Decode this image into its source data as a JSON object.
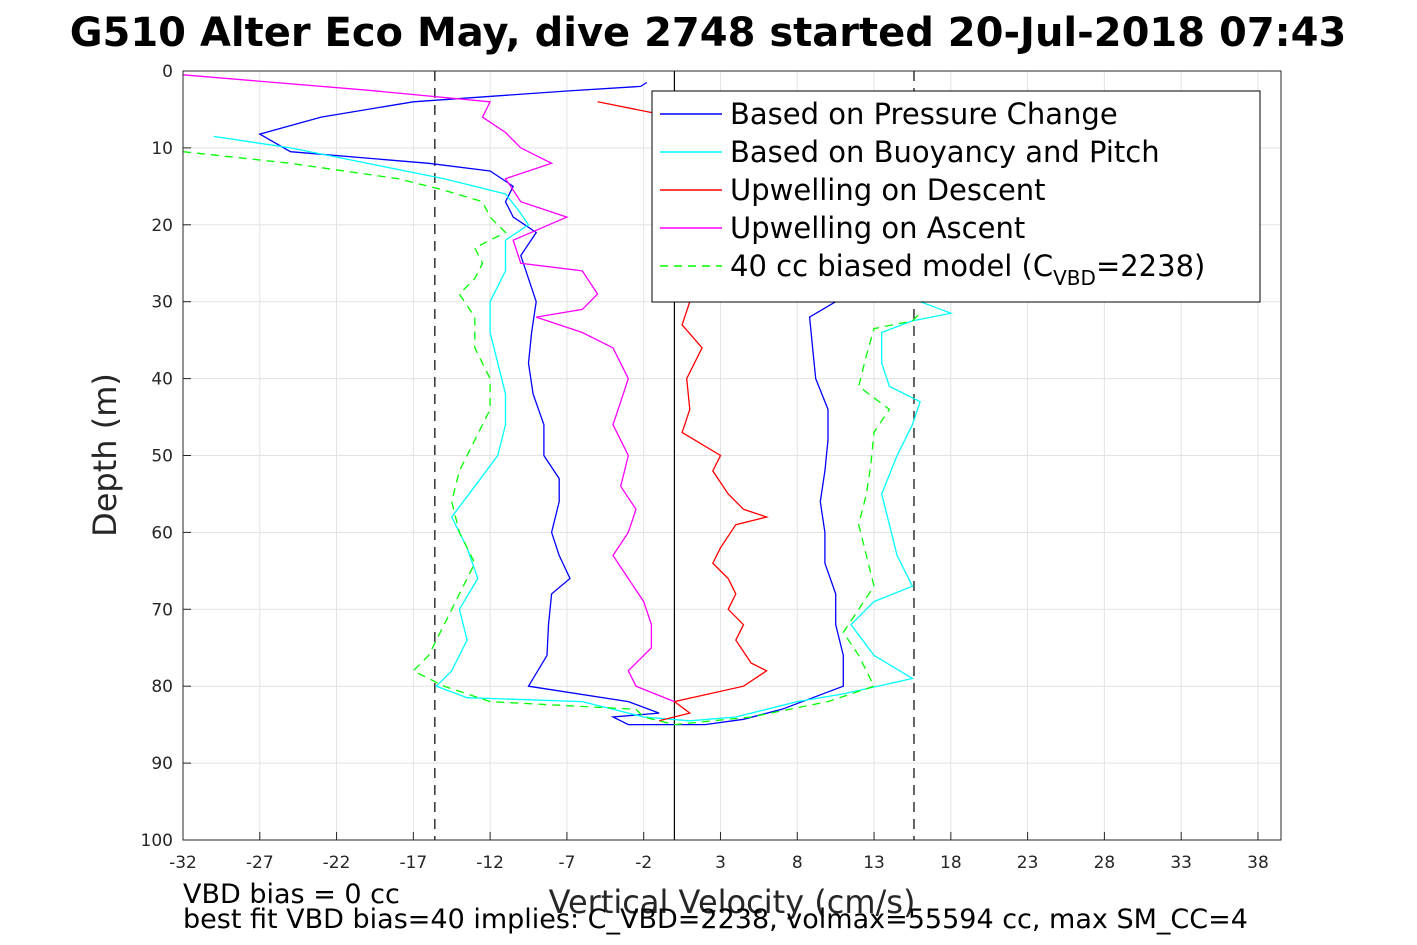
{
  "chart_data": {
    "type": "line",
    "title": "G510 Alter Eco May, dive 2748 started 20-Jul-2018 07:43",
    "xlabel": "Vertical Velocity (cm/s)",
    "ylabel": "Depth (m)",
    "xlim": [
      -32,
      39.5
    ],
    "ylim": [
      0,
      100
    ],
    "y_reversed": true,
    "grid": true,
    "legend_position": "top-right",
    "x_ticks": [
      -32,
      -27,
      -22,
      -17,
      -12,
      -7,
      -2,
      3,
      8,
      13,
      18,
      23,
      28,
      33,
      38
    ],
    "y_ticks": [
      0,
      10,
      20,
      30,
      40,
      50,
      60,
      70,
      80,
      90,
      100
    ],
    "reference_lines": [
      {
        "x": 0,
        "style": "solid",
        "color": "#000000"
      },
      {
        "x": -15.6,
        "style": "dashed",
        "color": "#000000"
      },
      {
        "x": 15.6,
        "style": "dashed",
        "color": "#000000"
      }
    ],
    "series": [
      {
        "name": "Based on Pressure Change",
        "color": "#0000ff",
        "dash": "",
        "points": [
          [
            -1.8,
            1.5
          ],
          [
            -2.2,
            2
          ],
          [
            -7,
            2.6
          ],
          [
            -17,
            4
          ],
          [
            -23,
            6
          ],
          [
            -27,
            8.2
          ],
          [
            -25,
            10.5
          ],
          [
            -16,
            12
          ],
          [
            -12,
            13
          ],
          [
            -10.5,
            15
          ],
          [
            -11,
            17
          ],
          [
            -10.5,
            19
          ],
          [
            -9,
            21
          ],
          [
            -10,
            24
          ],
          [
            -9.5,
            27
          ],
          [
            -9,
            30
          ],
          [
            -9.3,
            34
          ],
          [
            -9.5,
            38
          ],
          [
            -9.2,
            42
          ],
          [
            -8.5,
            46
          ],
          [
            -8.5,
            50
          ],
          [
            -7.5,
            53
          ],
          [
            -7.5,
            56
          ],
          [
            -8,
            60
          ],
          [
            -7.5,
            63
          ],
          [
            -6.8,
            66
          ],
          [
            -8,
            68
          ],
          [
            -8.2,
            72
          ],
          [
            -8.3,
            76
          ],
          [
            -9.5,
            80
          ],
          [
            -3,
            82
          ],
          [
            -1,
            83.5
          ],
          [
            -4,
            84
          ],
          [
            -3,
            85
          ],
          [
            2,
            85
          ],
          [
            4.5,
            84.3
          ],
          [
            7,
            83
          ],
          [
            11,
            80
          ],
          [
            11,
            76
          ],
          [
            10.5,
            72
          ],
          [
            10.5,
            68
          ],
          [
            9.8,
            64
          ],
          [
            9.8,
            60
          ],
          [
            9.5,
            56
          ],
          [
            9.8,
            52
          ],
          [
            10,
            48
          ],
          [
            10,
            44
          ],
          [
            9.2,
            40
          ],
          [
            9,
            36
          ],
          [
            8.8,
            32
          ],
          [
            10.5,
            30
          ]
        ]
      },
      {
        "name": "Based on Buoyancy and Pitch",
        "color": "#00ffff",
        "dash": "",
        "points": [
          [
            -30,
            8.5
          ],
          [
            -25,
            10
          ],
          [
            -20,
            12
          ],
          [
            -15,
            14
          ],
          [
            -11,
            16
          ],
          [
            -10.2,
            18
          ],
          [
            -9.5,
            20
          ],
          [
            -11,
            22
          ],
          [
            -11,
            26
          ],
          [
            -12,
            30
          ],
          [
            -12,
            34
          ],
          [
            -11.5,
            38
          ],
          [
            -11,
            42
          ],
          [
            -11,
            46
          ],
          [
            -11.5,
            50
          ],
          [
            -13,
            54
          ],
          [
            -14.5,
            58
          ],
          [
            -13.5,
            62
          ],
          [
            -12.8,
            66
          ],
          [
            -14,
            70
          ],
          [
            -13.5,
            74
          ],
          [
            -14.5,
            78
          ],
          [
            -15.5,
            80
          ],
          [
            -13.5,
            81.5
          ],
          [
            -6,
            82
          ],
          [
            -4,
            83
          ],
          [
            -2,
            84
          ],
          [
            1,
            84.5
          ],
          [
            4,
            84
          ],
          [
            8,
            82
          ],
          [
            11,
            81
          ],
          [
            15.5,
            79
          ],
          [
            13,
            76
          ],
          [
            11.5,
            72
          ],
          [
            13,
            69
          ],
          [
            15.5,
            67
          ],
          [
            14.5,
            63
          ],
          [
            14,
            59
          ],
          [
            13.5,
            55
          ],
          [
            14.5,
            50
          ],
          [
            15.5,
            46
          ],
          [
            16,
            43
          ],
          [
            14,
            41
          ],
          [
            13.5,
            38
          ],
          [
            13.5,
            34
          ],
          [
            15.5,
            32.5
          ],
          [
            18,
            31.5
          ],
          [
            16,
            30
          ],
          [
            14,
            28.5
          ]
        ]
      },
      {
        "name": "Upwelling on Descent",
        "color": "#ff0000",
        "dash": "",
        "points": [
          [
            -5,
            4
          ],
          [
            0,
            6
          ],
          [
            2,
            8
          ],
          [
            1,
            30
          ],
          [
            0.5,
            33
          ],
          [
            1.8,
            36
          ],
          [
            0.8,
            40
          ],
          [
            1,
            44
          ],
          [
            0.5,
            47
          ],
          [
            3,
            50
          ],
          [
            2.5,
            52
          ],
          [
            3.5,
            55
          ],
          [
            4.5,
            57
          ],
          [
            6,
            58
          ],
          [
            4,
            59
          ],
          [
            3,
            62
          ],
          [
            2.5,
            64
          ],
          [
            3.5,
            66
          ],
          [
            4,
            68
          ],
          [
            3.5,
            70
          ],
          [
            4.5,
            72
          ],
          [
            4,
            74
          ],
          [
            5,
            77
          ],
          [
            6,
            78
          ],
          [
            4.5,
            80
          ],
          [
            0,
            82
          ],
          [
            1,
            83.5
          ],
          [
            -1,
            84.5
          ]
        ]
      },
      {
        "name": "Upwelling on Ascent",
        "color": "#ff00ff",
        "dash": "",
        "points": [
          [
            -32,
            0.5
          ],
          [
            -20,
            2.5
          ],
          [
            -12,
            4
          ],
          [
            -12.5,
            6
          ],
          [
            -11,
            8
          ],
          [
            -10,
            10
          ],
          [
            -8,
            12
          ],
          [
            -11,
            14
          ],
          [
            -10,
            17
          ],
          [
            -7,
            19
          ],
          [
            -10.5,
            22
          ],
          [
            -10,
            25
          ],
          [
            -6,
            26
          ],
          [
            -5,
            29
          ],
          [
            -6,
            31
          ],
          [
            -9,
            32
          ],
          [
            -6,
            34
          ],
          [
            -4,
            36
          ],
          [
            -3,
            40
          ],
          [
            -3.5,
            43
          ],
          [
            -4,
            46
          ],
          [
            -3,
            50
          ],
          [
            -3.5,
            54
          ],
          [
            -2.5,
            57
          ],
          [
            -3,
            60
          ],
          [
            -4,
            63
          ],
          [
            -3,
            66
          ],
          [
            -2,
            69
          ],
          [
            -1.5,
            72
          ],
          [
            -1.5,
            75
          ],
          [
            -3,
            78
          ],
          [
            -2.5,
            80
          ],
          [
            0,
            82
          ]
        ]
      },
      {
        "name": "40 cc biased model (C_VBD=2238)",
        "color": "#00ff00",
        "dash": "8,6",
        "points": [
          [
            -32,
            10.5
          ],
          [
            -25,
            12
          ],
          [
            -18,
            14
          ],
          [
            -15,
            15.5
          ],
          [
            -12.5,
            17
          ],
          [
            -12,
            19
          ],
          [
            -11,
            21
          ],
          [
            -13,
            23
          ],
          [
            -12.5,
            25
          ],
          [
            -13,
            27
          ],
          [
            -14,
            29
          ],
          [
            -13,
            32
          ],
          [
            -13,
            36
          ],
          [
            -12,
            40
          ],
          [
            -12,
            44
          ],
          [
            -13,
            48
          ],
          [
            -14,
            52
          ],
          [
            -14.5,
            56
          ],
          [
            -14,
            60
          ],
          [
            -13,
            64
          ],
          [
            -14,
            68
          ],
          [
            -15,
            72
          ],
          [
            -16,
            76
          ],
          [
            -17,
            78
          ],
          [
            -15,
            80
          ],
          [
            -12,
            82
          ],
          [
            -2.5,
            83
          ],
          [
            -2,
            84
          ],
          [
            0,
            85
          ],
          [
            5,
            84
          ],
          [
            10,
            82
          ],
          [
            13,
            80
          ],
          [
            12,
            76
          ],
          [
            11,
            73
          ],
          [
            12,
            70
          ],
          [
            13,
            67
          ],
          [
            12.5,
            63
          ],
          [
            12,
            59
          ],
          [
            12.5,
            55
          ],
          [
            12.8,
            51
          ],
          [
            13,
            47
          ],
          [
            14,
            44
          ],
          [
            12,
            41
          ],
          [
            12.5,
            37
          ],
          [
            13,
            33.5
          ],
          [
            15.5,
            32.5
          ],
          [
            16,
            31.5
          ]
        ]
      }
    ]
  },
  "footer": {
    "line1": "VBD bias = 0 cc",
    "line2": "best fit VBD bias=40 implies: C_VBD=2238, volmax=55594 cc, max SM_CC=4"
  }
}
